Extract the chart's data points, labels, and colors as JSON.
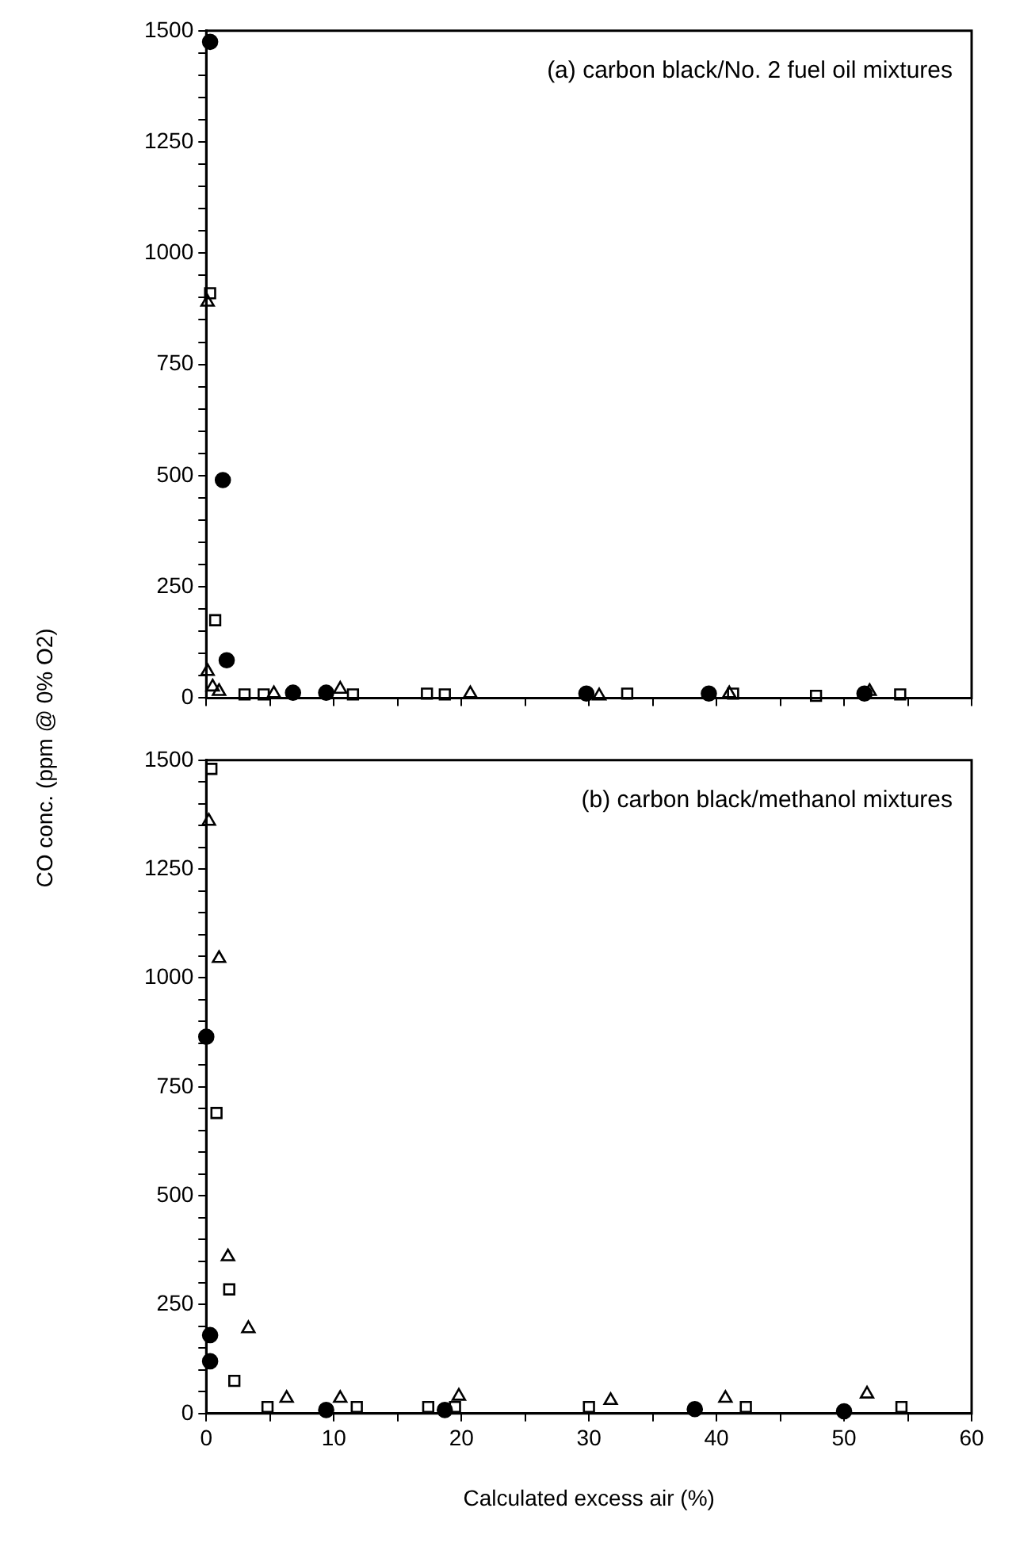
{
  "chart_data": [
    {
      "type": "scatter",
      "ylabel": "CO conc. (ppm @ 0% O2)",
      "annotations": [
        "(a) carbon black/No. 2 fuel oil mixtures"
      ],
      "tick_labels": "y",
      "xlim": [
        0,
        60
      ],
      "xticks": [
        0,
        {
          "value": 5,
          "label": null
        },
        {
          "value": 10,
          "label": null
        },
        {
          "value": 15,
          "label": null
        },
        {
          "value": 20,
          "label": null
        },
        {
          "value": 25,
          "label": null
        },
        {
          "value": 30,
          "label": null
        },
        {
          "value": 35,
          "label": null
        },
        {
          "value": 40,
          "label": null
        },
        {
          "value": 45,
          "label": null
        },
        {
          "value": 50,
          "label": null
        },
        {
          "value": 55,
          "label": null
        },
        {
          "value": 60,
          "label": null
        }
      ],
      "ylim": [
        0,
        1500
      ],
      "yticks": [
        0,
        {
          "value": 50,
          "label": null
        },
        {
          "value": 100,
          "label": null
        },
        {
          "value": 150,
          "label": null
        },
        {
          "value": 200,
          "label": null
        },
        250,
        {
          "value": 300,
          "label": null
        },
        {
          "value": 350,
          "label": null
        },
        {
          "value": 400,
          "label": null
        },
        {
          "value": 450,
          "label": null
        },
        500,
        {
          "value": 550,
          "label": null
        },
        {
          "value": 600,
          "label": null
        },
        {
          "value": 650,
          "label": null
        },
        {
          "value": 700,
          "label": null
        },
        750,
        {
          "value": 800,
          "label": null
        },
        {
          "value": 850,
          "label": null
        },
        {
          "value": 900,
          "label": null
        },
        {
          "value": 950,
          "label": null
        },
        1000,
        {
          "value": 1050,
          "label": null
        },
        {
          "value": 1100,
          "label": null
        },
        {
          "value": 1150,
          "label": null
        },
        {
          "value": 1200,
          "label": null
        },
        1250,
        {
          "value": 1300,
          "label": null
        },
        {
          "value": 1350,
          "label": null
        },
        {
          "value": 1400,
          "label": null
        },
        {
          "value": 1450,
          "label": null
        },
        1500
      ],
      "grid": false,
      "legend": false,
      "series": [
        {
          "color": "#000000",
          "marker": "circle",
          "x": [
            0.3,
            1.3,
            1.6,
            6.8,
            9.4,
            29.8,
            39.4,
            51.6
          ],
          "values": [
            1475,
            490,
            85,
            12,
            12,
            10,
            10,
            10
          ]
        },
        {
          "color": "#000000",
          "marker": "square",
          "x": [
            0.3,
            0.7,
            3,
            4.5,
            11.5,
            17.3,
            18.7,
            33,
            41.3,
            47.8,
            54.4
          ],
          "values": [
            910,
            175,
            8,
            8,
            8,
            10,
            8,
            10,
            10,
            5,
            8
          ]
        },
        {
          "color": "#000000",
          "marker": "triangle",
          "x": [
            0.1,
            0.1,
            0.5,
            1,
            5.3,
            10.5,
            20.7,
            30.8,
            41,
            52
          ],
          "values": [
            890,
            60,
            25,
            15,
            10,
            20,
            10,
            5,
            10,
            15
          ]
        }
      ]
    },
    {
      "type": "scatter",
      "xlabel": "Calculated excess air (%)",
      "annotations": [
        "(b) carbon black/methanol mixtures"
      ],
      "xlim": [
        0,
        60
      ],
      "xticks": [
        0,
        {
          "value": 5,
          "label": null
        },
        10,
        {
          "value": 15,
          "label": null
        },
        20,
        {
          "value": 25,
          "label": null
        },
        30,
        {
          "value": 35,
          "label": null
        },
        40,
        {
          "value": 45,
          "label": null
        },
        50,
        {
          "value": 55,
          "label": null
        },
        60
      ],
      "ylim": [
        0,
        1500
      ],
      "yticks": [
        0,
        {
          "value": 50,
          "label": null
        },
        {
          "value": 100,
          "label": null
        },
        {
          "value": 150,
          "label": null
        },
        {
          "value": 200,
          "label": null
        },
        250,
        {
          "value": 300,
          "label": null
        },
        {
          "value": 350,
          "label": null
        },
        {
          "value": 400,
          "label": null
        },
        {
          "value": 450,
          "label": null
        },
        500,
        {
          "value": 550,
          "label": null
        },
        {
          "value": 600,
          "label": null
        },
        {
          "value": 650,
          "label": null
        },
        {
          "value": 700,
          "label": null
        },
        750,
        {
          "value": 800,
          "label": null
        },
        {
          "value": 850,
          "label": null
        },
        {
          "value": 900,
          "label": null
        },
        {
          "value": 950,
          "label": null
        },
        1000,
        {
          "value": 1050,
          "label": null
        },
        {
          "value": 1100,
          "label": null
        },
        {
          "value": 1150,
          "label": null
        },
        {
          "value": 1200,
          "label": null
        },
        1250,
        {
          "value": 1300,
          "label": null
        },
        {
          "value": 1350,
          "label": null
        },
        {
          "value": 1400,
          "label": null
        },
        {
          "value": 1450,
          "label": null
        },
        1500
      ],
      "grid": false,
      "legend": false,
      "series": [
        {
          "color": "#000000",
          "marker": "circle",
          "x": [
            0,
            0.3,
            0.3,
            9.4,
            18.7,
            38.3,
            50
          ],
          "values": [
            865,
            180,
            120,
            8,
            8,
            10,
            5
          ]
        },
        {
          "color": "#000000",
          "marker": "square",
          "x": [
            0.4,
            0.8,
            1.8,
            2.2,
            4.8,
            11.8,
            17.4,
            19.5,
            30,
            42.3,
            54.5
          ],
          "values": [
            1480,
            690,
            285,
            75,
            15,
            15,
            15,
            15,
            15,
            15,
            15
          ]
        },
        {
          "color": "#000000",
          "marker": "triangle",
          "x": [
            0.2,
            1,
            1.7,
            3.3,
            6.3,
            10.5,
            19.8,
            31.7,
            40.7,
            51.8
          ],
          "values": [
            1360,
            1045,
            360,
            195,
            35,
            35,
            40,
            30,
            35,
            45
          ]
        }
      ]
    }
  ]
}
